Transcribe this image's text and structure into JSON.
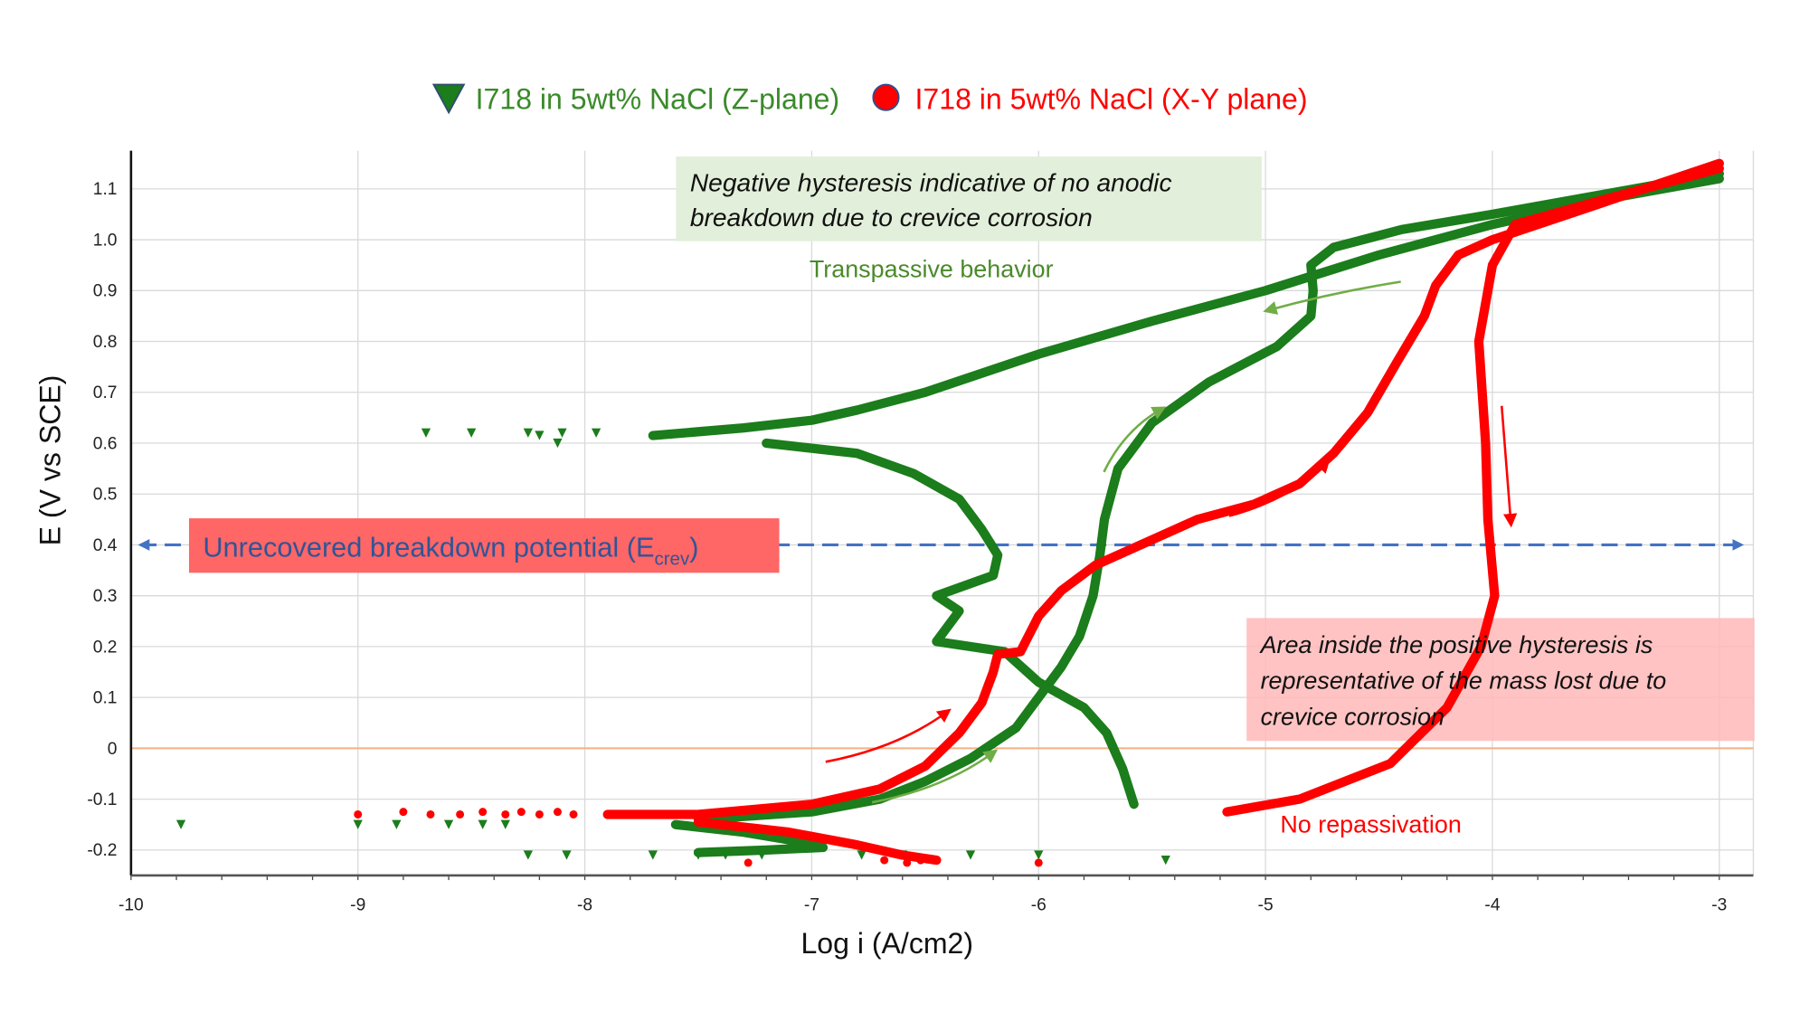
{
  "chart_data": {
    "type": "scatter",
    "xlabel": "Log i (A/cm2)",
    "ylabel": "E (V vs SCE)",
    "xlim": [
      -10,
      -2.85
    ],
    "ylim": [
      -0.25,
      1.175
    ],
    "x_ticks": [
      "-10",
      "-9",
      "-8",
      "-7",
      "-6",
      "-5",
      "-4",
      "-3"
    ],
    "x_tick_values": [
      -10,
      -9,
      -8,
      -7,
      -6,
      -5,
      -4,
      -3
    ],
    "y_ticks": [
      "-0.2",
      "-0.1",
      "0",
      "0.1",
      "0.2",
      "0.3",
      "0.4",
      "0.5",
      "0.6",
      "0.7",
      "0.8",
      "0.9",
      "1.0",
      "1.1"
    ],
    "y_tick_values": [
      -0.2,
      -0.1,
      0,
      0.1,
      0.2,
      0.3,
      0.4,
      0.5,
      0.6,
      0.7,
      0.8,
      0.9,
      1.0,
      1.1
    ],
    "grid": true,
    "legend_placement": "top",
    "series": [
      {
        "name": "I718 in 5wt% NaCl (Z-plane)",
        "color": "#1b7d1b",
        "marker": "triangle-down",
        "curves": [
          [
            [
              -7.5,
              -0.14
            ],
            [
              -7.0,
              -0.125
            ],
            [
              -6.7,
              -0.1
            ],
            [
              -6.5,
              -0.065
            ],
            [
              -6.3,
              -0.02
            ],
            [
              -6.1,
              0.04
            ],
            [
              -6.0,
              0.1
            ],
            [
              -5.9,
              0.16
            ],
            [
              -5.82,
              0.22
            ],
            [
              -5.76,
              0.3
            ],
            [
              -5.73,
              0.38
            ],
            [
              -5.71,
              0.45
            ],
            [
              -5.65,
              0.55
            ],
            [
              -5.5,
              0.64
            ],
            [
              -5.25,
              0.72
            ],
            [
              -4.95,
              0.79
            ],
            [
              -4.8,
              0.85
            ],
            [
              -4.79,
              0.9
            ],
            [
              -4.8,
              0.95
            ],
            [
              -4.7,
              0.985
            ],
            [
              -4.4,
              1.02
            ],
            [
              -4.0,
              1.05
            ],
            [
              -3.5,
              1.09
            ],
            [
              -3.0,
              1.13
            ]
          ],
          [
            [
              -3.0,
              1.12
            ],
            [
              -3.5,
              1.08
            ],
            [
              -4.0,
              1.03
            ],
            [
              -4.5,
              0.97
            ],
            [
              -5.0,
              0.9
            ],
            [
              -5.5,
              0.84
            ],
            [
              -6.0,
              0.775
            ],
            [
              -6.5,
              0.7
            ],
            [
              -6.8,
              0.665
            ],
            [
              -7.0,
              0.645
            ],
            [
              -7.3,
              0.63
            ],
            [
              -7.7,
              0.615
            ]
          ],
          [
            [
              -7.2,
              0.6
            ],
            [
              -6.8,
              0.58
            ],
            [
              -6.55,
              0.54
            ],
            [
              -6.35,
              0.49
            ],
            [
              -6.25,
              0.43
            ],
            [
              -6.18,
              0.38
            ],
            [
              -6.2,
              0.34
            ],
            [
              -6.45,
              0.3
            ],
            [
              -6.35,
              0.27
            ],
            [
              -6.4,
              0.24
            ],
            [
              -6.45,
              0.21
            ],
            [
              -6.3,
              0.2
            ],
            [
              -6.15,
              0.19
            ],
            [
              -6.0,
              0.13
            ],
            [
              -5.8,
              0.08
            ],
            [
              -5.7,
              0.03
            ],
            [
              -5.63,
              -0.04
            ],
            [
              -5.58,
              -0.11
            ]
          ],
          [
            [
              -7.6,
              -0.15
            ],
            [
              -7.3,
              -0.165
            ],
            [
              -7.1,
              -0.18
            ],
            [
              -6.95,
              -0.195
            ],
            [
              -7.2,
              -0.2
            ],
            [
              -7.5,
              -0.205
            ]
          ]
        ],
        "scatter": [
          [
            -9.78,
            -0.15
          ],
          [
            -9.0,
            -0.15
          ],
          [
            -8.83,
            -0.15
          ],
          [
            -8.6,
            -0.15
          ],
          [
            -8.45,
            -0.15
          ],
          [
            -8.35,
            -0.15
          ],
          [
            -8.7,
            0.62
          ],
          [
            -8.5,
            0.62
          ],
          [
            -8.25,
            0.62
          ],
          [
            -8.2,
            0.615
          ],
          [
            -8.12,
            0.6
          ],
          [
            -8.1,
            0.62
          ],
          [
            -7.95,
            0.62
          ],
          [
            -8.25,
            -0.21
          ],
          [
            -8.08,
            -0.21
          ],
          [
            -7.7,
            -0.21
          ],
          [
            -7.5,
            -0.21
          ],
          [
            -7.38,
            -0.21
          ],
          [
            -7.22,
            -0.21
          ],
          [
            -6.78,
            -0.21
          ],
          [
            -6.6,
            -0.21
          ],
          [
            -6.3,
            -0.21
          ],
          [
            -6.0,
            -0.21
          ],
          [
            -5.44,
            -0.22
          ]
        ]
      },
      {
        "name": "I718 in 5wt% NaCl (X-Y plane)",
        "color": "#ff0000",
        "marker": "circle",
        "curves": [
          [
            [
              -7.9,
              -0.13
            ],
            [
              -7.5,
              -0.13
            ],
            [
              -7.0,
              -0.11
            ],
            [
              -6.7,
              -0.08
            ],
            [
              -6.5,
              -0.035
            ],
            [
              -6.35,
              0.03
            ],
            [
              -6.25,
              0.09
            ],
            [
              -6.2,
              0.15
            ],
            [
              -6.18,
              0.185
            ],
            [
              -6.08,
              0.19
            ],
            [
              -6.0,
              0.26
            ],
            [
              -5.9,
              0.31
            ],
            [
              -5.75,
              0.36
            ],
            [
              -5.5,
              0.41
            ],
            [
              -5.3,
              0.45
            ],
            [
              -5.05,
              0.48
            ],
            [
              -4.85,
              0.52
            ],
            [
              -4.7,
              0.58
            ],
            [
              -4.55,
              0.66
            ],
            [
              -4.42,
              0.76
            ],
            [
              -4.3,
              0.85
            ],
            [
              -4.25,
              0.91
            ],
            [
              -4.15,
              0.97
            ],
            [
              -4.0,
              1.0
            ],
            [
              -3.6,
              1.06
            ],
            [
              -3.0,
              1.15
            ]
          ],
          [
            [
              -3.0,
              1.14
            ],
            [
              -3.5,
              1.08
            ],
            [
              -3.9,
              1.03
            ],
            [
              -4.0,
              0.95
            ],
            [
              -4.06,
              0.8
            ],
            [
              -4.03,
              0.6
            ],
            [
              -4.02,
              0.45
            ],
            [
              -3.99,
              0.3
            ],
            [
              -4.05,
              0.2
            ],
            [
              -4.2,
              0.08
            ],
            [
              -4.45,
              -0.03
            ],
            [
              -4.85,
              -0.1
            ],
            [
              -5.17,
              -0.125
            ]
          ],
          [
            [
              -7.5,
              -0.145
            ],
            [
              -7.1,
              -0.165
            ],
            [
              -6.8,
              -0.19
            ],
            [
              -6.6,
              -0.21
            ],
            [
              -6.45,
              -0.22
            ]
          ]
        ],
        "scatter": [
          [
            -9.0,
            -0.13
          ],
          [
            -8.8,
            -0.125
          ],
          [
            -8.68,
            -0.13
          ],
          [
            -8.55,
            -0.13
          ],
          [
            -8.45,
            -0.125
          ],
          [
            -8.35,
            -0.13
          ],
          [
            -8.28,
            -0.125
          ],
          [
            -8.2,
            -0.13
          ],
          [
            -8.12,
            -0.125
          ],
          [
            -8.05,
            -0.13
          ],
          [
            -7.28,
            -0.225
          ],
          [
            -6.68,
            -0.22
          ],
          [
            -6.58,
            -0.225
          ],
          [
            -6.52,
            -0.22
          ],
          [
            -6.0,
            -0.225
          ]
        ]
      }
    ],
    "reference_lines": [
      {
        "axis": "y",
        "value": 0.4,
        "color": "#4472c4",
        "style": "dashed",
        "arrows": "both"
      },
      {
        "axis": "y",
        "value": 0,
        "color": "#f4b183",
        "style": "solid"
      }
    ],
    "annotations": {
      "negative_hysteresis": [
        "Negative hysteresis indicative of no anodic",
        "breakdown due to crevice corrosion"
      ],
      "transpassive": "Transpassive behavior",
      "breakdown_main": "Unrecovered breakdown potential (E",
      "breakdown_sub": "crev",
      "breakdown_close": ")",
      "positive_hysteresis": [
        "Area inside the positive hysteresis is",
        "representative of the mass lost due to",
        "crevice corrosion"
      ],
      "no_repassivation": "No repassivation"
    },
    "colors": {
      "green_box": "#e2efda",
      "red_label_box": "#ff6666",
      "pink_box": "#ffb8b8",
      "green_arrow": "#70ad47",
      "blue_text": "#2f5597"
    }
  }
}
